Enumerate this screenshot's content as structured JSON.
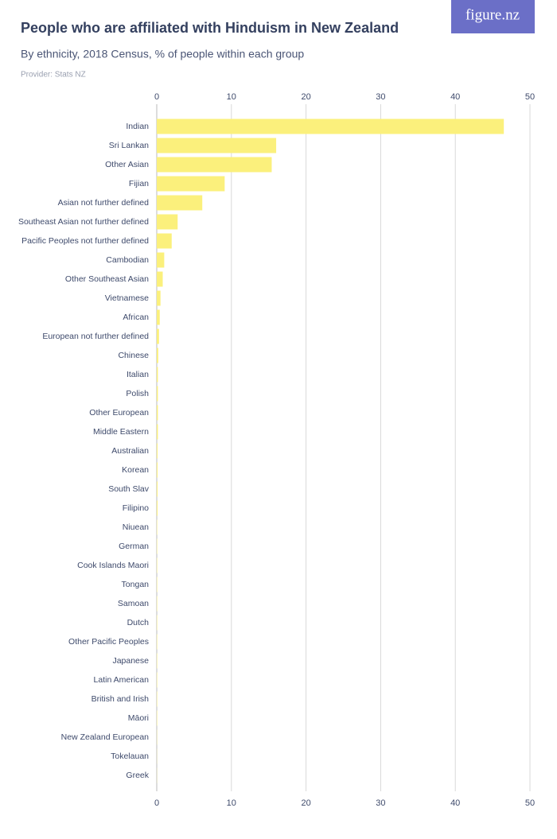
{
  "logo": "figure.nz",
  "chart_data": {
    "type": "bar",
    "orientation": "horizontal",
    "title": "People who are affiliated with Hinduism in New Zealand",
    "subtitle": "By ethnicity, 2018 Census, % of people within each group",
    "provider": "Provider: Stats NZ",
    "categories": [
      "Indian",
      "Sri Lankan",
      "Other Asian",
      "Fijian",
      "Asian not further defined",
      "Southeast Asian not further defined",
      "Pacific Peoples not further defined",
      "Cambodian",
      "Other Southeast Asian",
      "Vietnamese",
      "African",
      "European not further defined",
      "Chinese",
      "Italian",
      "Polish",
      "Other European",
      "Middle Eastern",
      "Australian",
      "Korean",
      "South Slav",
      "Filipino",
      "Niuean",
      "German",
      "Cook Islands Maori",
      "Tongan",
      "Samoan",
      "Dutch",
      "Other Pacific Peoples",
      "Japanese",
      "Latin American",
      "British and Irish",
      "Māori",
      "New Zealand European",
      "Tokelauan",
      "Greek"
    ],
    "values": [
      46.5,
      16,
      15.4,
      9.1,
      6.1,
      2.8,
      2.0,
      1.0,
      0.8,
      0.5,
      0.4,
      0.3,
      0.2,
      0.15,
      0.15,
      0.15,
      0.15,
      0.1,
      0.1,
      0.1,
      0.1,
      0.05,
      0.05,
      0.05,
      0.05,
      0.05,
      0.05,
      0.05,
      0.05,
      0.05,
      0.05,
      0.05,
      0.03,
      0.02,
      0.02
    ],
    "color": "#fbf07c",
    "xlim": [
      0,
      50
    ],
    "xticks": [
      0,
      10,
      20,
      30,
      40,
      50
    ],
    "grid": true
  }
}
